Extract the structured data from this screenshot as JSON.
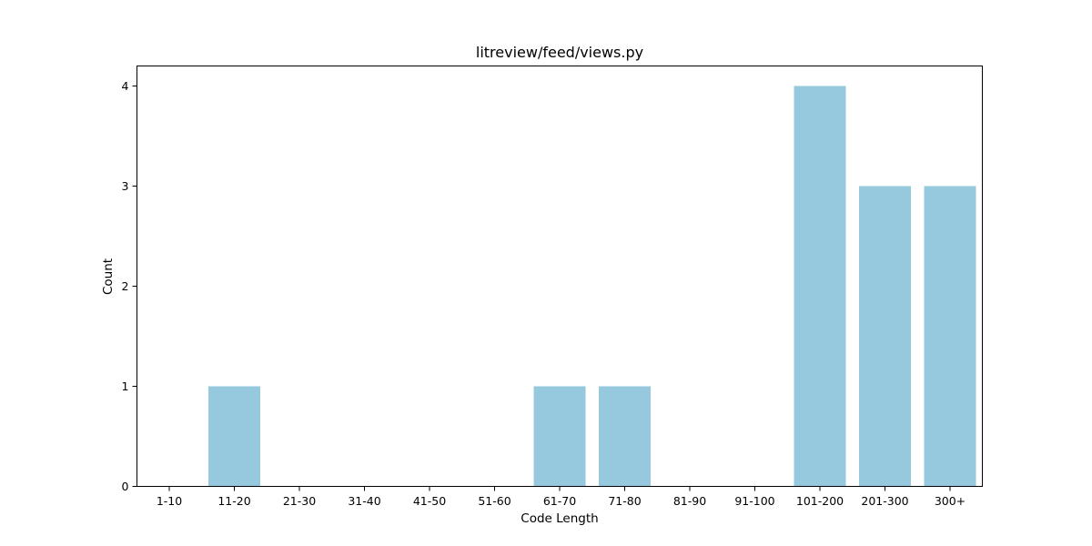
{
  "chart_data": {
    "type": "bar",
    "title": "litreview/feed/views.py",
    "xlabel": "Code Length",
    "ylabel": "Count",
    "categories": [
      "1-10",
      "11-20",
      "21-30",
      "31-40",
      "41-50",
      "51-60",
      "61-70",
      "71-80",
      "81-90",
      "91-100",
      "101-200",
      "201-300",
      "300+"
    ],
    "values": [
      0,
      1,
      0,
      0,
      0,
      0,
      1,
      1,
      0,
      0,
      4,
      3,
      3
    ],
    "ylim": [
      0,
      4.2
    ],
    "yticks": [
      0,
      1,
      2,
      3,
      4
    ],
    "grid": false,
    "legend": "none",
    "bar_color": "#96c9dd"
  }
}
